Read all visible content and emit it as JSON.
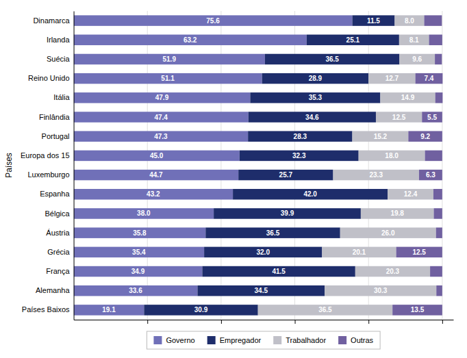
{
  "chart_data": {
    "type": "bar",
    "orientation": "horizontal",
    "stacked": true,
    "categories": [
      "Países Baixos",
      "Alemanha",
      "França",
      "Grécia",
      "Áustria",
      "Bélgica",
      "Espanha",
      "Luxemburgo",
      "Europa dos 15",
      "Portugal",
      "Finlândia",
      "Itália",
      "Reino Unido",
      "Suécia",
      "Irlanda",
      "Dinamarca"
    ],
    "series": [
      {
        "name": "Governo",
        "color": "#7070b8",
        "values": [
          19.1,
          33.6,
          34.9,
          35.4,
          35.8,
          38.0,
          43.2,
          44.7,
          45.0,
          47.3,
          47.4,
          47.9,
          51.1,
          51.9,
          63.2,
          75.6
        ],
        "value_labels": [
          "19.1",
          "33.6",
          "34.9",
          "35.4",
          "35.8",
          "38.0",
          "43.2",
          "44.7",
          "45.0",
          "47.3",
          "47.4",
          "47.9",
          "51.1",
          "51.9",
          "63.2",
          "75.6"
        ]
      },
      {
        "name": "Empregador",
        "color": "#1e2d6b",
        "values": [
          30.9,
          34.5,
          41.5,
          32.0,
          36.5,
          39.9,
          42.0,
          25.7,
          32.3,
          28.3,
          34.6,
          35.3,
          28.9,
          36.5,
          25.1,
          11.5
        ],
        "value_labels": [
          "30.9",
          "34.5",
          "41.5",
          "32.0",
          "36.5",
          "39.9",
          "42.0",
          "25.7",
          "32.3",
          "28.3",
          "34.6",
          "35.3",
          "28.9",
          "36.5",
          "25.1",
          "11.5"
        ]
      },
      {
        "name": "Trabalhador",
        "color": "#c0c0c8",
        "values": [
          36.5,
          30.3,
          20.3,
          20.1,
          26.0,
          19.8,
          12.4,
          23.3,
          18.0,
          15.2,
          12.5,
          14.9,
          12.7,
          9.6,
          8.1,
          8.0
        ],
        "value_labels": [
          "36.5",
          "30.3",
          "20.3",
          "20.1",
          "26.0",
          "19.8",
          "12.4",
          "23.3",
          "18.0",
          "15.2",
          "12.5",
          "14.9",
          "12.7",
          "9.6",
          "8.1",
          "8.0"
        ]
      },
      {
        "name": "Outras",
        "color": "#7060a0",
        "values": [
          13.5,
          1.6,
          3.3,
          12.5,
          1.7,
          2.3,
          2.4,
          6.3,
          4.7,
          9.2,
          5.5,
          2.0,
          7.4,
          1.9,
          3.6,
          4.8
        ],
        "value_labels": [
          "13.5",
          null,
          null,
          "12.5",
          null,
          null,
          null,
          "6.3",
          null,
          "9.2",
          "5.5",
          null,
          "7.4",
          null,
          null,
          null
        ]
      }
    ],
    "ylabel": "Países",
    "xlim": [
      0,
      103
    ],
    "xticks": [
      20,
      40,
      60,
      80,
      100
    ],
    "tick_labels": "y",
    "grid": true,
    "data_labels": true,
    "legend": "bottom"
  }
}
